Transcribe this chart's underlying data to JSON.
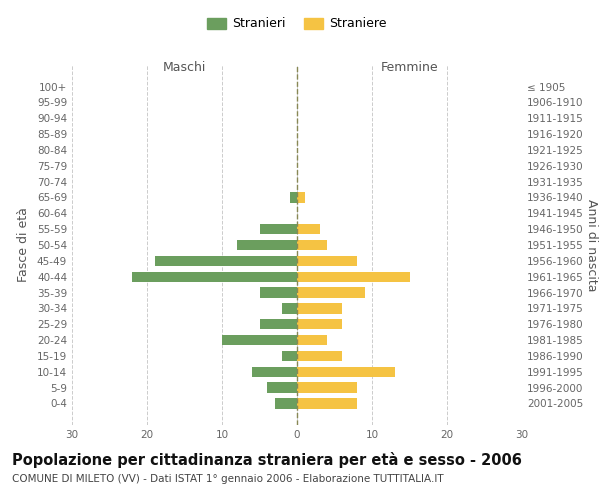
{
  "age_groups": [
    "100+",
    "95-99",
    "90-94",
    "85-89",
    "80-84",
    "75-79",
    "70-74",
    "65-69",
    "60-64",
    "55-59",
    "50-54",
    "45-49",
    "40-44",
    "35-39",
    "30-34",
    "25-29",
    "20-24",
    "15-19",
    "10-14",
    "5-9",
    "0-4"
  ],
  "birth_years": [
    "≤ 1905",
    "1906-1910",
    "1911-1915",
    "1916-1920",
    "1921-1925",
    "1926-1930",
    "1931-1935",
    "1936-1940",
    "1941-1945",
    "1946-1950",
    "1951-1955",
    "1956-1960",
    "1961-1965",
    "1966-1970",
    "1971-1975",
    "1976-1980",
    "1981-1985",
    "1986-1990",
    "1991-1995",
    "1996-2000",
    "2001-2005"
  ],
  "maschi": [
    0,
    0,
    0,
    0,
    0,
    0,
    0,
    1,
    0,
    5,
    8,
    19,
    22,
    5,
    2,
    5,
    10,
    2,
    6,
    4,
    3
  ],
  "femmine": [
    0,
    0,
    0,
    0,
    0,
    0,
    0,
    1,
    0,
    3,
    4,
    8,
    15,
    9,
    6,
    6,
    4,
    6,
    13,
    8,
    8
  ],
  "male_color": "#6b9e5e",
  "female_color": "#f5c343",
  "center_line_color": "#888855",
  "background_color": "#ffffff",
  "grid_color": "#cccccc",
  "title": "Popolazione per cittadinanza straniera per età e sesso - 2006",
  "subtitle": "COMUNE DI MILETO (VV) - Dati ISTAT 1° gennaio 2006 - Elaborazione TUTTITALIA.IT",
  "xlabel_left": "Maschi",
  "xlabel_right": "Femmine",
  "ylabel_left": "Fasce di età",
  "ylabel_right": "Anni di nascita",
  "legend_stranieri": "Stranieri",
  "legend_straniere": "Straniere",
  "xlim": 30,
  "title_fontsize": 10.5,
  "subtitle_fontsize": 7.5,
  "tick_fontsize": 7.5,
  "label_fontsize": 9
}
